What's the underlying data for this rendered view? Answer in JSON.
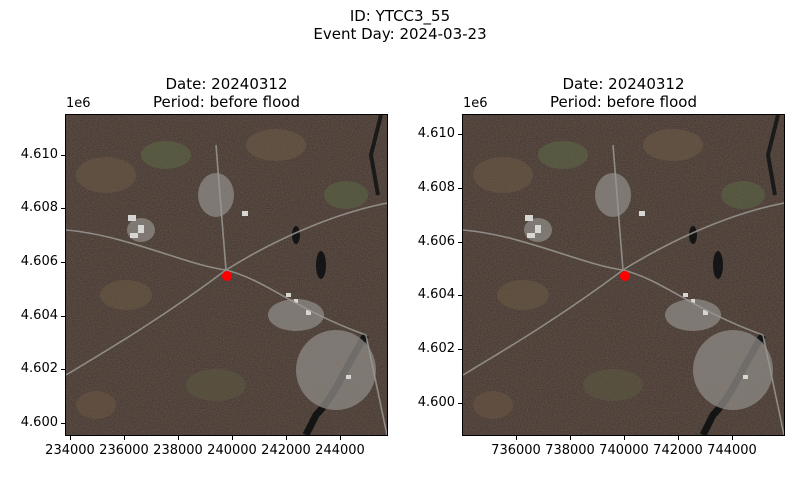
{
  "figure": {
    "suptitle_line1": "ID: YTCC3_55",
    "suptitle_line2": "Event Day: 2024-03-23"
  },
  "panels": [
    {
      "title_line1": "Date: 20240312",
      "title_line2": "Period: before flood",
      "y_multiplier": "1e6",
      "yticks": [
        "4.610",
        "4.608",
        "4.606",
        "4.604",
        "4.602",
        "4.600"
      ],
      "xticks": [
        "234000",
        "236000",
        "238000",
        "240000",
        "242000",
        "244000"
      ],
      "marker": {
        "color": "#ff0000"
      }
    },
    {
      "title_line1": "Date: 20240312",
      "title_line2": "Period: before flood",
      "y_multiplier": "1e6",
      "yticks": [
        "4.610",
        "4.608",
        "4.606",
        "4.604",
        "4.602",
        "4.600"
      ],
      "xticks": [
        "736000",
        "738000",
        "740000",
        "742000",
        "744000"
      ],
      "marker": {
        "color": "#ff0000"
      }
    }
  ]
}
